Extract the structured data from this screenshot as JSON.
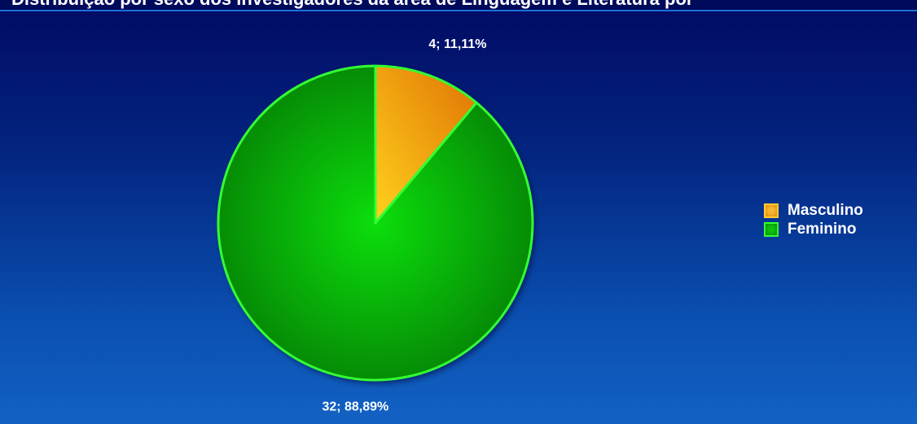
{
  "header": {
    "title": "Distribuição por sexo dos investigadores da área de Linguagem e Literatura por"
  },
  "chart_data": {
    "type": "pie",
    "title": "",
    "slices": [
      {
        "name": "Masculino",
        "value": 4,
        "percent": 11.11,
        "label": "4; 11,11%",
        "color": "#f0a010"
      },
      {
        "name": "Feminino",
        "value": 32,
        "percent": 88.89,
        "label": "32; 88,89%",
        "color": "#0ec00e"
      }
    ],
    "start_angle": "12 o'clock",
    "direction": "clockwise",
    "legend_position": "right"
  },
  "colors": {
    "background_top": "#010a63",
    "background_bottom": "#1262c4",
    "slice_border": "#33ff33"
  }
}
